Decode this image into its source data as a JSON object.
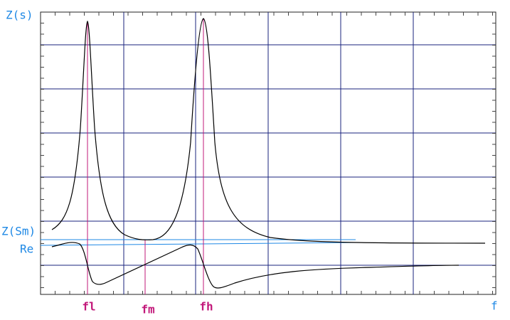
{
  "axes": {
    "y_label": "Z(s)",
    "x_label": "f"
  },
  "markers": {
    "z_sm": "Z(Sm)",
    "re": "Re"
  },
  "frequencies": {
    "fl": "fl",
    "fm": "fm",
    "fh": "fh"
  }
}
